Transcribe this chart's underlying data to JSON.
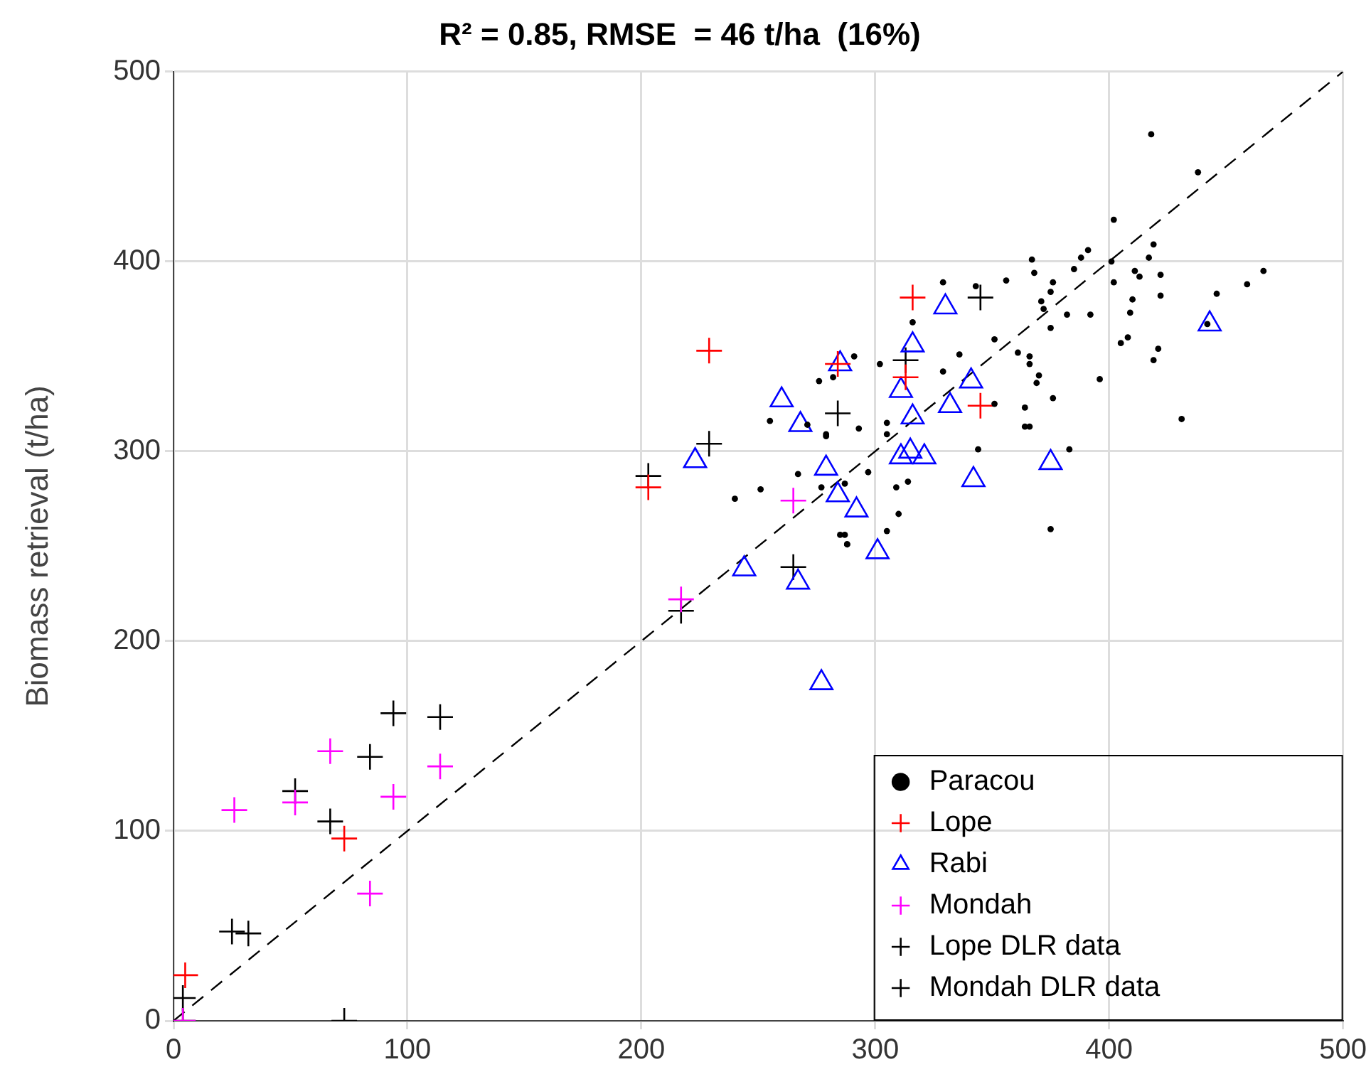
{
  "chart_data": {
    "type": "scatter",
    "title": "R² = 0.85, RMSE  = 46 t/ha  (16%)",
    "ylabel": "Biomass retrieval (t/ha)",
    "xlim": [
      0,
      500
    ],
    "ylim": [
      0,
      500
    ],
    "xticks": [
      0,
      100,
      200,
      300,
      400,
      500
    ],
    "yticks": [
      0,
      100,
      200,
      300,
      400,
      500
    ],
    "grid": true,
    "legend": "bottom right",
    "series": [
      {
        "name": "Paracou",
        "color": "#000000",
        "marker": "circle",
        "x": [
          418,
          438,
          402,
          391,
          388,
          367,
          401,
          419,
          417,
          368,
          385,
          376,
          375,
          402,
          411,
          413,
          422,
          422,
          410,
          409,
          371,
          372,
          375,
          382,
          392,
          446,
          459,
          466,
          408,
          405,
          421,
          419,
          351,
          361,
          366,
          366,
          370,
          369,
          396,
          376,
          364,
          364,
          366,
          431,
          383,
          344,
          375,
          329,
          343,
          356,
          336,
          329,
          351,
          316,
          302,
          291,
          282,
          305,
          305,
          293,
          279,
          297,
          309,
          314,
          310,
          305,
          287,
          288,
          287,
          442,
          240,
          251,
          267,
          255,
          276,
          279,
          271,
          285,
          288,
          277
        ],
        "values": [
          467,
          447,
          422,
          406,
          402,
          401,
          400,
          409,
          402,
          394,
          396,
          389,
          384,
          389,
          395,
          392,
          393,
          382,
          380,
          373,
          379,
          375,
          365,
          372,
          372,
          383,
          388,
          395,
          360,
          357,
          354,
          348,
          359,
          352,
          350,
          346,
          340,
          336,
          338,
          328,
          323,
          313,
          313,
          317,
          301,
          301,
          259,
          389,
          387,
          390,
          351,
          342,
          325,
          368,
          346,
          350,
          339,
          315,
          309,
          312,
          308,
          289,
          281,
          284,
          267,
          258,
          256,
          251,
          283,
          367,
          275,
          280,
          288,
          316,
          337,
          309,
          314,
          256,
          251,
          281
        ]
      },
      {
        "name": "Lope",
        "color": "#ff0000",
        "marker": "cross",
        "x": [
          5,
          73,
          203,
          229,
          284,
          316,
          313,
          345
        ],
        "values": [
          24,
          96,
          281,
          353,
          346,
          381,
          339,
          324
        ]
      },
      {
        "name": "Rabi",
        "color": "#0000ff",
        "marker": "triangle",
        "x": [
          223,
          260,
          268,
          285,
          279,
          284,
          267,
          244,
          277,
          330,
          316,
          311,
          341,
          332,
          316,
          311,
          315,
          321,
          342,
          375,
          443,
          301,
          292
        ],
        "values": [
          295,
          327,
          314,
          346,
          291,
          277,
          231,
          238,
          178,
          376,
          356,
          332,
          337,
          324,
          318,
          297,
          300,
          297,
          285,
          294,
          367,
          247,
          269
        ]
      },
      {
        "name": "Mondah",
        "color": "#ff00ff",
        "marker": "cross",
        "x": [
          265,
          217,
          67,
          114,
          94,
          52,
          26,
          84,
          4
        ],
        "values": [
          274,
          222,
          142,
          134,
          118,
          115,
          111,
          67,
          0
        ]
      },
      {
        "name": "Lope DLR data",
        "color": "#000000",
        "marker": "cross",
        "x": [
          203,
          229,
          284,
          313,
          345,
          73
        ],
        "values": [
          287,
          304,
          320,
          348,
          381,
          0
        ]
      },
      {
        "name": "Mondah DLR data",
        "color": "#000000",
        "marker": "cross",
        "x": [
          265,
          217,
          94,
          114,
          84,
          52,
          67,
          25,
          32,
          4,
          4
        ],
        "values": [
          239,
          216,
          162,
          160,
          139,
          121,
          105,
          47,
          46,
          12,
          0
        ]
      },
      {
        "type": "line",
        "color": "#000000",
        "line_style": "dashed",
        "marker": "none",
        "x": [
          0,
          500
        ],
        "values": [
          0,
          500
        ]
      }
    ]
  }
}
